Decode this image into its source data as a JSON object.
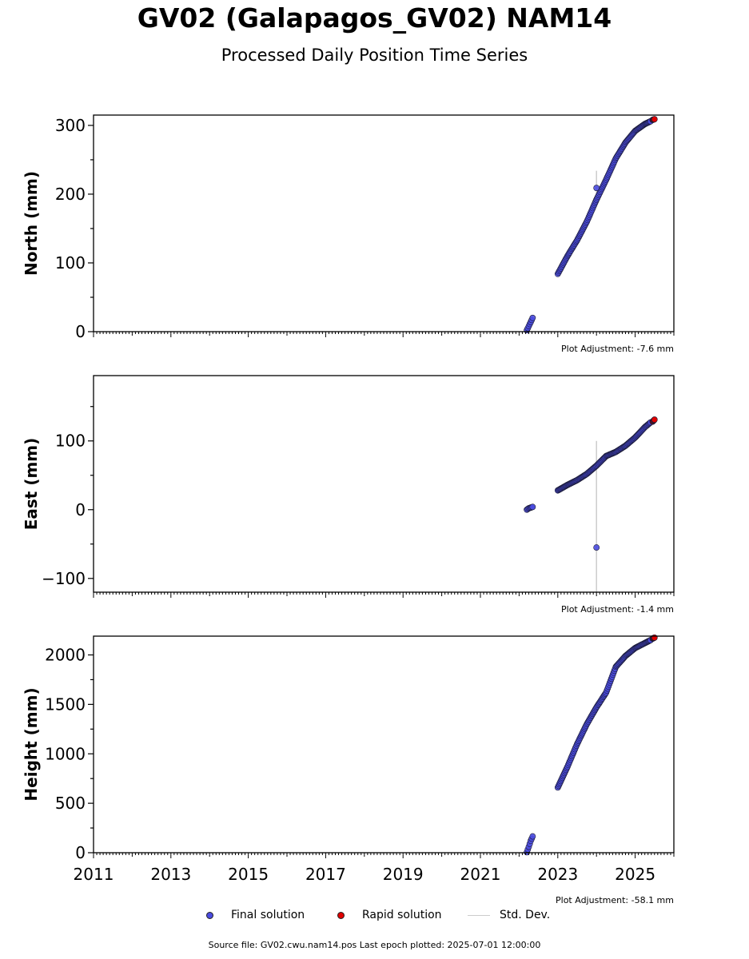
{
  "title": "GV02 (Galapagos_GV02) NAM14",
  "subtitle": "Processed Daily Position Time Series",
  "legend": {
    "final": "Final solution",
    "rapid": "Rapid solution",
    "std": "Std. Dev."
  },
  "colors": {
    "final": "#4a4be0",
    "rapid": "#e00000",
    "std": "#cccccc",
    "edge": "#1a1a33"
  },
  "footer": "Source file: GV02.cwu.nam14.pos  Last epoch plotted: 2025-07-01 12:00:00",
  "chart_data": [
    {
      "type": "scatter",
      "ylabel": "North (mm)",
      "adjustment": "Plot Adjustment: -7.6 mm",
      "xlim": [
        2011.0,
        2026.0
      ],
      "ylim": [
        0,
        315
      ],
      "yticks": [
        0,
        100,
        200,
        300
      ],
      "xticks": [
        2011,
        2013,
        2015,
        2017,
        2019,
        2021,
        2023,
        2025
      ],
      "show_xticklabels": false,
      "series": [
        {
          "kind": "final",
          "points": [
            [
              2022.2,
              2
            ],
            [
              2022.25,
              8
            ],
            [
              2022.3,
              14
            ],
            [
              2022.35,
              20
            ],
            [
              2023.0,
              84
            ],
            [
              2023.25,
              110
            ],
            [
              2023.5,
              133
            ],
            [
              2023.75,
              160
            ],
            [
              2024.0,
              192
            ],
            [
              2024.25,
              221
            ],
            [
              2024.5,
              252
            ],
            [
              2024.75,
              275
            ],
            [
              2025.0,
              292
            ],
            [
              2025.25,
              302
            ],
            [
              2025.4,
              306
            ]
          ]
        },
        {
          "kind": "final_outlier",
          "points": [
            [
              2024.0,
              209
            ]
          ]
        },
        {
          "kind": "rapid",
          "points": [
            [
              2025.45,
              308
            ],
            [
              2025.5,
              309
            ]
          ]
        }
      ],
      "stddev": [
        [
          2024.0,
          182,
          234
        ]
      ]
    },
    {
      "type": "scatter",
      "ylabel": "East (mm)",
      "adjustment": "Plot Adjustment: -1.4 mm",
      "xlim": [
        2011.0,
        2026.0
      ],
      "ylim": [
        -120,
        195
      ],
      "yticks": [
        -100,
        0,
        100
      ],
      "xticks": [
        2011,
        2013,
        2015,
        2017,
        2019,
        2021,
        2023,
        2025
      ],
      "show_xticklabels": false,
      "series": [
        {
          "kind": "final",
          "points": [
            [
              2022.2,
              0
            ],
            [
              2022.25,
              2
            ],
            [
              2022.3,
              3
            ],
            [
              2022.35,
              4
            ],
            [
              2023.0,
              28
            ],
            [
              2023.25,
              36
            ],
            [
              2023.5,
              43
            ],
            [
              2023.75,
              52
            ],
            [
              2024.0,
              64
            ],
            [
              2024.25,
              78
            ],
            [
              2024.5,
              84
            ],
            [
              2024.75,
              93
            ],
            [
              2025.0,
              105
            ],
            [
              2025.25,
              120
            ],
            [
              2025.4,
              127
            ]
          ]
        },
        {
          "kind": "final_outlier",
          "points": [
            [
              2024.0,
              -55
            ]
          ]
        },
        {
          "kind": "rapid",
          "points": [
            [
              2025.45,
              128
            ],
            [
              2025.5,
              131
            ]
          ]
        }
      ],
      "stddev": [
        [
          2024.0,
          -120,
          100
        ]
      ]
    },
    {
      "type": "scatter",
      "ylabel": "Height (mm)",
      "adjustment": "Plot Adjustment: -58.1 mm",
      "xlim": [
        2011.0,
        2026.0
      ],
      "ylim": [
        0,
        2190
      ],
      "yticks": [
        0,
        500,
        1000,
        1500,
        2000
      ],
      "xticks": [
        2011,
        2013,
        2015,
        2017,
        2019,
        2021,
        2023,
        2025
      ],
      "show_xticklabels": true,
      "series": [
        {
          "kind": "final",
          "points": [
            [
              2022.2,
              5
            ],
            [
              2022.25,
              60
            ],
            [
              2022.3,
              120
            ],
            [
              2022.35,
              165
            ],
            [
              2023.0,
              660
            ],
            [
              2023.25,
              870
            ],
            [
              2023.5,
              1100
            ],
            [
              2023.75,
              1300
            ],
            [
              2024.0,
              1470
            ],
            [
              2024.25,
              1620
            ],
            [
              2024.5,
              1880
            ],
            [
              2024.75,
              1990
            ],
            [
              2025.0,
              2070
            ],
            [
              2025.25,
              2120
            ],
            [
              2025.4,
              2150
            ]
          ]
        },
        {
          "kind": "rapid",
          "points": [
            [
              2025.45,
              2165
            ],
            [
              2025.5,
              2175
            ]
          ]
        }
      ],
      "stddev": []
    }
  ]
}
